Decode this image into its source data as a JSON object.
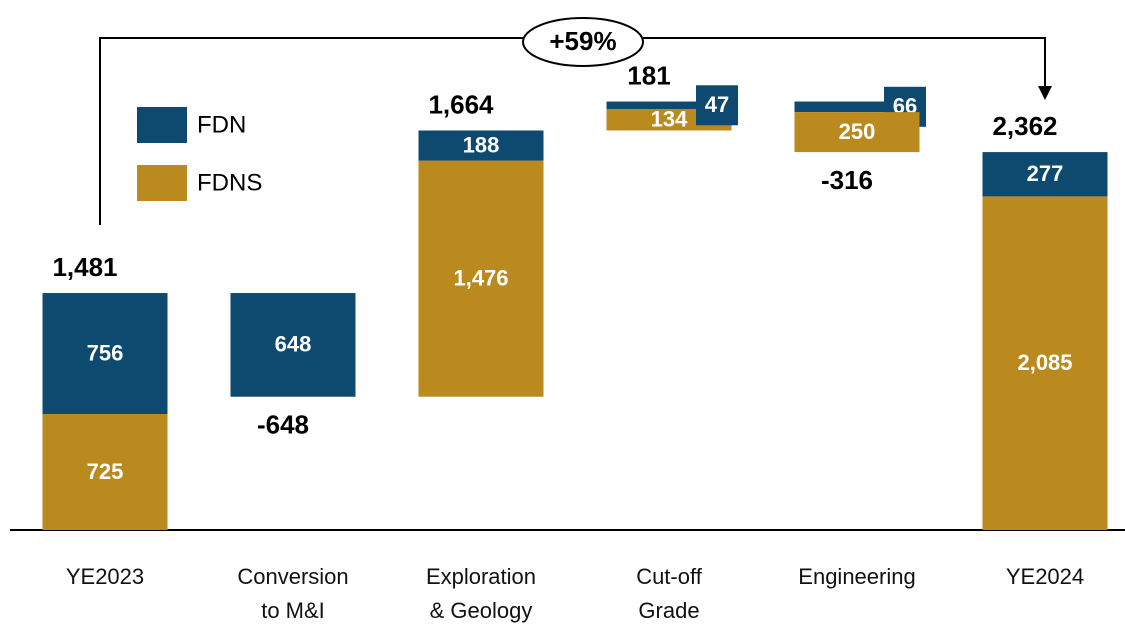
{
  "chart_data": {
    "type": "waterfall",
    "categories": [
      "YE2023",
      "Conversion\nto M&I",
      "Exploration\n& Geology",
      "Cut-off\nGrade",
      "Engineering",
      "YE2024"
    ],
    "is_total": [
      true,
      false,
      false,
      false,
      false,
      true
    ],
    "series": [
      {
        "name": "FDN",
        "color": "#0e4a70",
        "values": [
          756,
          -648,
          188,
          47,
          -66,
          277
        ],
        "value_labels": [
          "756",
          "648",
          "188",
          "47",
          "66",
          "277"
        ]
      },
      {
        "name": "FDNS",
        "color": "#bb8a1e",
        "values": [
          725,
          null,
          1476,
          134,
          -250,
          2085
        ],
        "value_labels": [
          "725",
          null,
          "1,476",
          "134",
          "250",
          "2,085"
        ]
      }
    ],
    "totals": {
      "values": [
        1481,
        -648,
        1664,
        181,
        -316,
        2362
      ],
      "value_labels": [
        "1,481",
        "-648",
        "1,664",
        "181",
        "-316",
        "2,362"
      ]
    },
    "annotation": "+59%",
    "ylim": [
      0,
      3000
    ]
  }
}
